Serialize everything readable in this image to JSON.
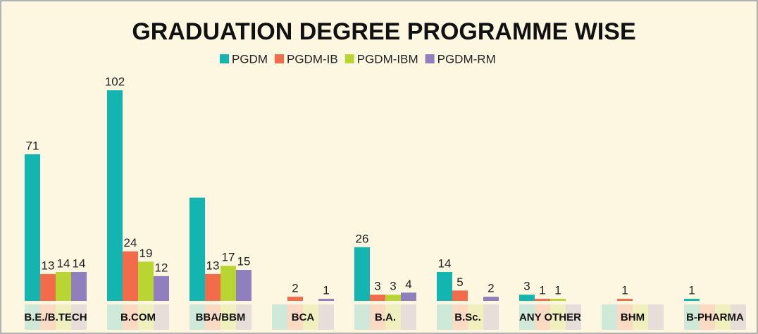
{
  "chart_data": {
    "type": "bar",
    "title": "GRADUATION DEGREE PROGRAMME WISE",
    "categories": [
      "B.E./B.TECH",
      "B.COM",
      "BBA/BBM",
      "BCA",
      "B.A.",
      "B.Sc.",
      "ANY OTHER",
      "BHM",
      "B-PHARMA"
    ],
    "series": [
      {
        "name": "PGDM",
        "color": "#13b5b1",
        "values": [
          71,
          102,
          50,
          0,
          26,
          14,
          3,
          0,
          1
        ],
        "value_labels": [
          "71",
          "102",
          null,
          null,
          "26",
          "14",
          "3",
          null,
          "1"
        ]
      },
      {
        "name": "PGDM-IB",
        "color": "#f26b4a",
        "values": [
          13,
          24,
          13,
          2,
          3,
          5,
          1,
          1,
          0
        ],
        "value_labels": [
          "13",
          "24",
          "13",
          "2",
          "3",
          "5",
          "1",
          "1",
          null
        ]
      },
      {
        "name": "PGDM-IBM",
        "color": "#b9d531",
        "values": [
          14,
          19,
          17,
          0,
          3,
          0,
          1,
          0,
          0
        ],
        "value_labels": [
          "14",
          "19",
          "17",
          null,
          "3",
          null,
          "1",
          null,
          null
        ]
      },
      {
        "name": "PGDM-RM",
        "color": "#8f7fbf",
        "values": [
          14,
          12,
          15,
          1,
          4,
          2,
          0,
          0,
          0
        ],
        "value_labels": [
          "14",
          "12",
          "15",
          "1",
          "4",
          "2",
          null,
          null,
          null
        ]
      }
    ],
    "legend": "top"
  }
}
